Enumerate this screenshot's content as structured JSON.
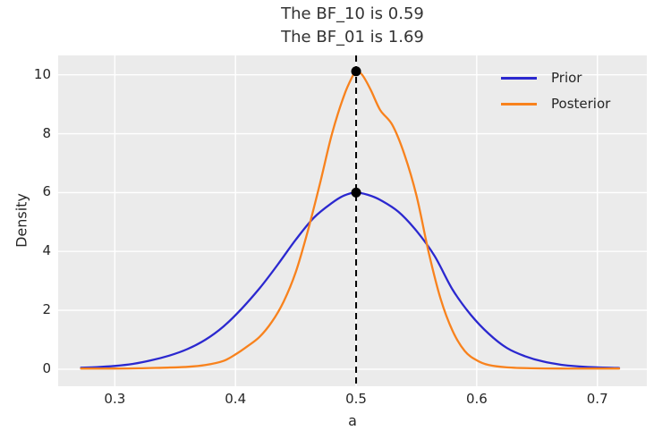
{
  "chart_data": {
    "type": "line",
    "title": "The BF_10 is 0.59\nThe BF_01 is 1.69",
    "title_lines": [
      "The BF_10 is 0.59",
      "The BF_01 is 1.69"
    ],
    "xlabel": "a",
    "ylabel": "Density",
    "xlim": [
      0.253,
      0.741
    ],
    "ylim": [
      -0.58,
      10.66
    ],
    "xticks": [
      0.3,
      0.4,
      0.5,
      0.6,
      0.7
    ],
    "xtick_labels": [
      "0.3",
      "0.4",
      "0.5",
      "0.6",
      "0.7"
    ],
    "yticks": [
      0,
      2,
      4,
      6,
      8,
      10
    ],
    "ytick_labels": [
      "0",
      "2",
      "4",
      "6",
      "8",
      "10"
    ],
    "grid": true,
    "legend_position": "upper right",
    "series": [
      {
        "name": "Prior",
        "color": "#2b28cf",
        "x": [
          0.272,
          0.285,
          0.3,
          0.315,
          0.33,
          0.345,
          0.36,
          0.375,
          0.39,
          0.405,
          0.42,
          0.435,
          0.45,
          0.465,
          0.48,
          0.49,
          0.5,
          0.51,
          0.52,
          0.535,
          0.55,
          0.565,
          0.58,
          0.595,
          0.61,
          0.625,
          0.64,
          0.655,
          0.67,
          0.685,
          0.7,
          0.718
        ],
        "y": [
          0.05,
          0.07,
          0.11,
          0.18,
          0.3,
          0.46,
          0.68,
          1.0,
          1.45,
          2.05,
          2.75,
          3.55,
          4.4,
          5.15,
          5.65,
          5.9,
          6.0,
          5.92,
          5.75,
          5.35,
          4.7,
          3.85,
          2.7,
          1.85,
          1.2,
          0.72,
          0.44,
          0.26,
          0.15,
          0.09,
          0.06,
          0.04
        ]
      },
      {
        "name": "Posterior",
        "color": "#f8821d",
        "x": [
          0.272,
          0.3,
          0.32,
          0.34,
          0.36,
          0.375,
          0.39,
          0.4,
          0.41,
          0.42,
          0.43,
          0.44,
          0.45,
          0.46,
          0.47,
          0.48,
          0.49,
          0.497,
          0.5,
          0.505,
          0.512,
          0.52,
          0.53,
          0.54,
          0.55,
          0.56,
          0.57,
          0.58,
          0.59,
          0.6,
          0.61,
          0.625,
          0.645,
          0.67,
          0.7,
          0.718
        ],
        "y": [
          0.02,
          0.02,
          0.03,
          0.05,
          0.08,
          0.14,
          0.28,
          0.5,
          0.78,
          1.1,
          1.6,
          2.3,
          3.3,
          4.7,
          6.3,
          8.0,
          9.3,
          9.95,
          10.12,
          10.0,
          9.5,
          8.8,
          8.3,
          7.3,
          5.9,
          4.0,
          2.4,
          1.3,
          0.62,
          0.3,
          0.14,
          0.06,
          0.03,
          0.02,
          0.02,
          0.02
        ]
      }
    ],
    "vline": {
      "x": 0.5,
      "color": "#000000",
      "style": "dashed"
    },
    "markers": [
      {
        "x": 0.5,
        "y": 10.12,
        "color": "#000000"
      },
      {
        "x": 0.5,
        "y": 6.0,
        "color": "#000000"
      }
    ],
    "colors": {
      "figure_background": "#ffffff",
      "axes_background": "#ebebeb",
      "grid": "#ffffff",
      "text": "#262626"
    }
  }
}
